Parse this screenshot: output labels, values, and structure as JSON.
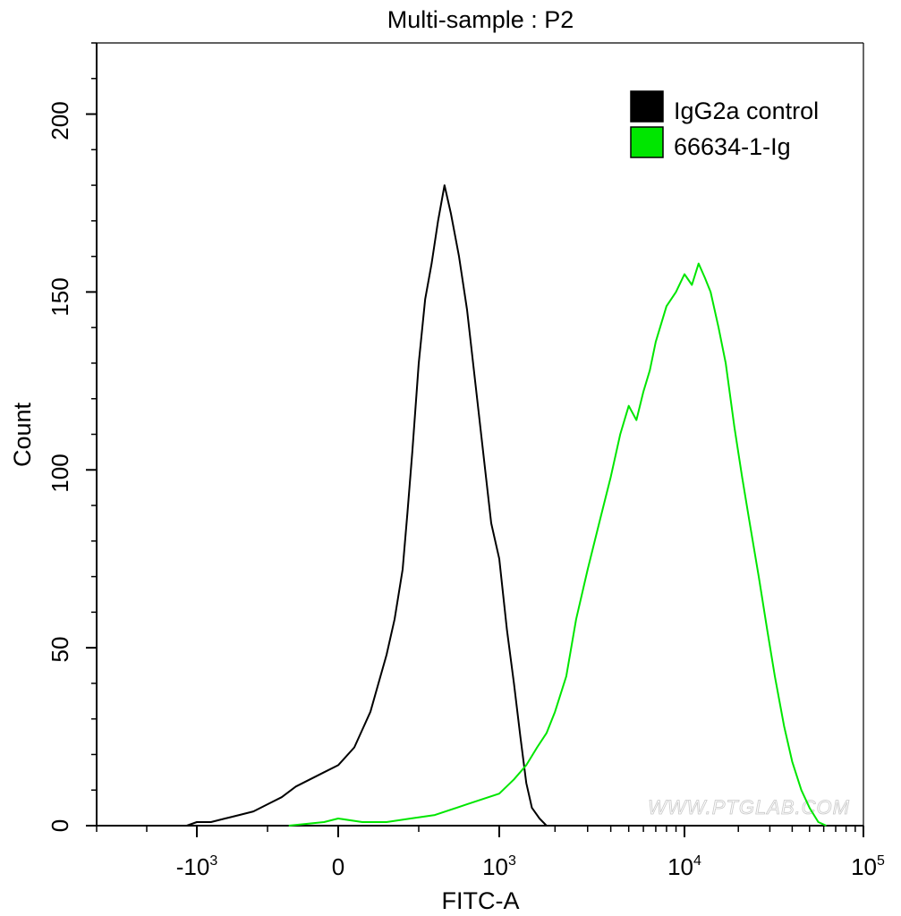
{
  "chart_data": {
    "type": "line",
    "title": "Multi-sample : P2",
    "xlabel": "FITC-A",
    "ylabel": "Count",
    "x_scale": "biexponential",
    "xlim": [
      -3000,
      100000
    ],
    "ylim": [
      0,
      220
    ],
    "x_ticks": [
      {
        "value": -1000,
        "base": "-10",
        "exp": "3"
      },
      {
        "value": 0,
        "base": "0",
        "exp": ""
      },
      {
        "value": 1000,
        "base": "10",
        "exp": "3"
      },
      {
        "value": 10000,
        "base": "10",
        "exp": "4"
      },
      {
        "value": 100000,
        "base": "10",
        "exp": "5"
      }
    ],
    "y_ticks": [
      0,
      50,
      100,
      150,
      200
    ],
    "legend": {
      "position": "top-right"
    },
    "watermark": "WWW.PTGLAB.COM",
    "series": [
      {
        "name": "IgG2a control",
        "color": "#000000",
        "points": [
          [
            -1200,
            0
          ],
          [
            -1000,
            1
          ],
          [
            -900,
            1
          ],
          [
            -800,
            2
          ],
          [
            -700,
            3
          ],
          [
            -600,
            4
          ],
          [
            -500,
            6
          ],
          [
            -400,
            8
          ],
          [
            -300,
            11
          ],
          [
            -200,
            13
          ],
          [
            -100,
            15
          ],
          [
            0,
            17
          ],
          [
            100,
            22
          ],
          [
            150,
            27
          ],
          [
            200,
            32
          ],
          [
            250,
            40
          ],
          [
            300,
            48
          ],
          [
            350,
            58
          ],
          [
            400,
            72
          ],
          [
            430,
            88
          ],
          [
            460,
            105
          ],
          [
            500,
            130
          ],
          [
            540,
            148
          ],
          [
            580,
            158
          ],
          [
            620,
            170
          ],
          [
            660,
            180
          ],
          [
            700,
            172
          ],
          [
            750,
            160
          ],
          [
            800,
            145
          ],
          [
            850,
            125
          ],
          [
            900,
            105
          ],
          [
            950,
            85
          ],
          [
            1000,
            75
          ],
          [
            1100,
            55
          ],
          [
            1200,
            40
          ],
          [
            1300,
            25
          ],
          [
            1400,
            12
          ],
          [
            1500,
            5
          ],
          [
            1650,
            2
          ],
          [
            1800,
            0
          ],
          [
            2300,
            0
          ],
          [
            10000,
            0
          ]
        ]
      },
      {
        "name": "66634-1-Ig",
        "color": "#00e600",
        "points": [
          [
            -350,
            0
          ],
          [
            -100,
            1
          ],
          [
            0,
            2
          ],
          [
            150,
            1
          ],
          [
            300,
            1
          ],
          [
            450,
            2
          ],
          [
            600,
            3
          ],
          [
            800,
            6
          ],
          [
            1000,
            9
          ],
          [
            1200,
            13
          ],
          [
            1400,
            17
          ],
          [
            1600,
            22
          ],
          [
            1800,
            26
          ],
          [
            2000,
            32
          ],
          [
            2300,
            42
          ],
          [
            2600,
            58
          ],
          [
            3000,
            72
          ],
          [
            3500,
            86
          ],
          [
            4000,
            98
          ],
          [
            4500,
            110
          ],
          [
            5000,
            118
          ],
          [
            5500,
            114
          ],
          [
            6000,
            122
          ],
          [
            6500,
            128
          ],
          [
            7000,
            136
          ],
          [
            8000,
            146
          ],
          [
            9000,
            150
          ],
          [
            10000,
            155
          ],
          [
            11000,
            152
          ],
          [
            12000,
            158
          ],
          [
            13000,
            154
          ],
          [
            14000,
            150
          ],
          [
            15500,
            140
          ],
          [
            17000,
            130
          ],
          [
            19000,
            112
          ],
          [
            21000,
            98
          ],
          [
            23000,
            86
          ],
          [
            26000,
            70
          ],
          [
            29000,
            55
          ],
          [
            32000,
            42
          ],
          [
            36000,
            28
          ],
          [
            40000,
            18
          ],
          [
            45000,
            10
          ],
          [
            50000,
            5
          ],
          [
            56000,
            1
          ],
          [
            62000,
            0
          ]
        ]
      }
    ]
  }
}
